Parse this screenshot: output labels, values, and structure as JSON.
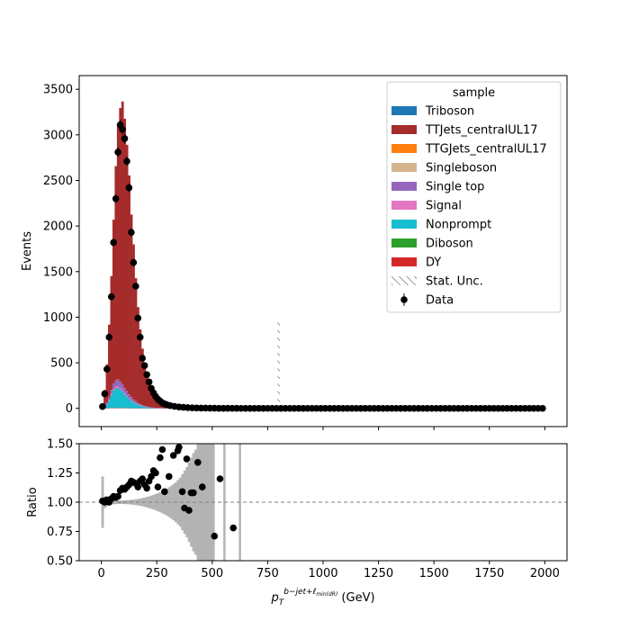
{
  "chart_data": [
    {
      "type": "bar",
      "subtype": "stacked-histogram",
      "xlabel": "p_T^{b-jet+ℓ_min(dR)} (GeV)",
      "xlabel_main": "p",
      "xlabel_sub": "T",
      "xlabel_sup": "b−jet+ℓ",
      "xlabel_supsub": "min(dR)",
      "xlabel_unit": " (GeV)",
      "ylabel": "Events",
      "xlim": [
        -100,
        2100
      ],
      "ylim": [
        -200,
        3650
      ],
      "xticks": [
        0,
        250,
        500,
        750,
        1000,
        1250,
        1500,
        1750,
        2000
      ],
      "yticks": [
        0,
        500,
        1000,
        1500,
        2000,
        2500,
        3000,
        3500
      ],
      "legend_title": "sample",
      "legend_position": "upper right",
      "stack_order": [
        "DY",
        "Diboson",
        "Nonprompt",
        "Signal",
        "Single top",
        "Singleboson",
        "TTGJets_centralUL17",
        "TTJets_centralUL17",
        "Triboson"
      ],
      "legend": [
        {
          "name": "Triboson",
          "color": "#1f77b4",
          "kind": "patch"
        },
        {
          "name": "TTJets_centralUL17",
          "color": "#a62c2c",
          "kind": "patch"
        },
        {
          "name": "TTGJets_centralUL17",
          "color": "#ff7f0e",
          "kind": "patch"
        },
        {
          "name": "Singleboson",
          "color": "#d4b58e",
          "kind": "patch"
        },
        {
          "name": "Single top",
          "color": "#9467bd",
          "kind": "patch"
        },
        {
          "name": "Signal",
          "color": "#e377c2",
          "kind": "patch"
        },
        {
          "name": "Nonprompt",
          "color": "#17becf",
          "kind": "patch"
        },
        {
          "name": "Diboson",
          "color": "#2ca02c",
          "kind": "patch"
        },
        {
          "name": "DY",
          "color": "#d62728",
          "kind": "patch"
        },
        {
          "name": "Stat. Unc.",
          "color": "#808080",
          "kind": "hatch"
        },
        {
          "name": "Data",
          "color": "#000000",
          "kind": "errorbar"
        }
      ],
      "bin_width": 10,
      "bin_starts": [
        0,
        10,
        20,
        30,
        40,
        50,
        60,
        70,
        80,
        90,
        100,
        110,
        120,
        130,
        140,
        150,
        160,
        170,
        180,
        190,
        200,
        210,
        220,
        230,
        240,
        250,
        260,
        270,
        280,
        290,
        300,
        310,
        320,
        330,
        340,
        350,
        360,
        370,
        380,
        390
      ],
      "stack": {
        "TTJets_centralUL17": [
          30,
          180,
          420,
          800,
          1250,
          1800,
          2350,
          2800,
          3000,
          3100,
          2950,
          2700,
          2400,
          2000,
          1700,
          1350,
          1050,
          820,
          620,
          470,
          350,
          260,
          195,
          145,
          108,
          80,
          60,
          45,
          34,
          26,
          20,
          15,
          12,
          9,
          7,
          5,
          4,
          3,
          2.5,
          2
        ],
        "Nonprompt": [
          2,
          15,
          40,
          80,
          140,
          190,
          215,
          220,
          200,
          180,
          150,
          125,
          100,
          80,
          62,
          50,
          38,
          29,
          22,
          16,
          12,
          9,
          7,
          5,
          4,
          3,
          2,
          1.5,
          1,
          1,
          0.8,
          0.6,
          0.5,
          0.4,
          0.3,
          0.2,
          0.2,
          0.1,
          0.1,
          0.1
        ],
        "Signal": [
          0,
          2,
          5,
          10,
          15,
          18,
          20,
          20,
          18,
          16,
          14,
          12,
          10,
          8,
          6,
          5,
          4,
          3,
          2,
          2,
          1,
          1,
          1,
          0.5,
          0.5,
          0.3,
          0.2,
          0.2,
          0.1,
          0.1,
          0,
          0,
          0,
          0,
          0,
          0,
          0,
          0,
          0,
          0
        ],
        "Single top": [
          0,
          5,
          15,
          25,
          40,
          55,
          65,
          70,
          70,
          65,
          58,
          50,
          42,
          35,
          28,
          22,
          17,
          13,
          10,
          8,
          6,
          5,
          4,
          3,
          2,
          2,
          1,
          1,
          1,
          0.5,
          0.5,
          0.3,
          0.2,
          0.2,
          0.1,
          0.1,
          0.1,
          0,
          0,
          0
        ],
        "DY": [
          0,
          1,
          2,
          3,
          4,
          5,
          5,
          5,
          4,
          4,
          3,
          3,
          2,
          2,
          2,
          1,
          1,
          1,
          1,
          0.5,
          0.5,
          0.3,
          0.2,
          0.2,
          0.1,
          0.1,
          0,
          0,
          0,
          0,
          0,
          0,
          0,
          0,
          0,
          0,
          0,
          0,
          0,
          0
        ],
        "Singleboson": [
          0,
          0,
          1,
          1,
          2,
          2,
          2,
          2,
          2,
          1,
          1,
          1,
          1,
          1,
          0.5,
          0.5,
          0.3,
          0.3,
          0.2,
          0.1,
          0.1,
          0,
          0,
          0,
          0,
          0,
          0,
          0,
          0,
          0,
          0,
          0,
          0,
          0,
          0,
          0,
          0,
          0,
          0,
          0
        ]
      },
      "unc_spike": {
        "x": 800,
        "y": [
          0,
          950
        ]
      },
      "data_points": [
        {
          "x": 5,
          "y": 20
        },
        {
          "x": 15,
          "y": 160
        },
        {
          "x": 25,
          "y": 430
        },
        {
          "x": 35,
          "y": 780
        },
        {
          "x": 45,
          "y": 1225
        },
        {
          "x": 55,
          "y": 1820
        },
        {
          "x": 65,
          "y": 2300
        },
        {
          "x": 75,
          "y": 2810
        },
        {
          "x": 85,
          "y": 3110
        },
        {
          "x": 95,
          "y": 3060
        },
        {
          "x": 105,
          "y": 2960
        },
        {
          "x": 115,
          "y": 2710
        },
        {
          "x": 125,
          "y": 2420
        },
        {
          "x": 135,
          "y": 1930
        },
        {
          "x": 145,
          "y": 1600
        },
        {
          "x": 155,
          "y": 1340
        },
        {
          "x": 165,
          "y": 990
        },
        {
          "x": 175,
          "y": 780
        },
        {
          "x": 185,
          "y": 550
        },
        {
          "x": 195,
          "y": 470
        },
        {
          "x": 205,
          "y": 370
        },
        {
          "x": 215,
          "y": 290
        },
        {
          "x": 225,
          "y": 220
        },
        {
          "x": 235,
          "y": 170
        },
        {
          "x": 245,
          "y": 130
        },
        {
          "x": 255,
          "y": 100
        },
        {
          "x": 265,
          "y": 80
        },
        {
          "x": 275,
          "y": 60
        },
        {
          "x": 285,
          "y": 50
        },
        {
          "x": 295,
          "y": 40
        },
        {
          "x": 310,
          "y": 30
        },
        {
          "x": 330,
          "y": 22
        },
        {
          "x": 350,
          "y": 15
        },
        {
          "x": 370,
          "y": 12
        },
        {
          "x": 390,
          "y": 8
        },
        {
          "x": 410,
          "y": 6
        },
        {
          "x": 430,
          "y": 4
        },
        {
          "x": 450,
          "y": 3
        },
        {
          "x": 470,
          "y": 3
        },
        {
          "x": 490,
          "y": 2
        },
        {
          "x": 510,
          "y": 2
        },
        {
          "x": 530,
          "y": 1
        },
        {
          "x": 550,
          "y": 1
        },
        {
          "x": 570,
          "y": 1
        },
        {
          "x": 590,
          "y": 1
        },
        {
          "x": 610,
          "y": 1
        },
        {
          "x": 630,
          "y": 0
        },
        {
          "x": 650,
          "y": 0
        },
        {
          "x": 670,
          "y": 0
        },
        {
          "x": 690,
          "y": 0
        },
        {
          "x": 710,
          "y": 0
        },
        {
          "x": 730,
          "y": 0
        },
        {
          "x": 750,
          "y": 0
        },
        {
          "x": 770,
          "y": 0
        },
        {
          "x": 790,
          "y": 0
        },
        {
          "x": 810,
          "y": 0
        },
        {
          "x": 830,
          "y": 0
        },
        {
          "x": 850,
          "y": 0
        },
        {
          "x": 870,
          "y": 0
        },
        {
          "x": 890,
          "y": 0
        },
        {
          "x": 910,
          "y": 0
        },
        {
          "x": 930,
          "y": 0
        },
        {
          "x": 950,
          "y": 0
        },
        {
          "x": 970,
          "y": 0
        },
        {
          "x": 990,
          "y": 0
        },
        {
          "x": 1010,
          "y": 0
        },
        {
          "x": 1030,
          "y": 0
        },
        {
          "x": 1050,
          "y": 0
        },
        {
          "x": 1070,
          "y": 0
        },
        {
          "x": 1090,
          "y": 0
        },
        {
          "x": 1110,
          "y": 0
        },
        {
          "x": 1130,
          "y": 0
        },
        {
          "x": 1150,
          "y": 0
        },
        {
          "x": 1170,
          "y": 0
        },
        {
          "x": 1190,
          "y": 0
        },
        {
          "x": 1210,
          "y": 0
        },
        {
          "x": 1230,
          "y": 0
        },
        {
          "x": 1250,
          "y": 0
        },
        {
          "x": 1270,
          "y": 0
        },
        {
          "x": 1290,
          "y": 0
        },
        {
          "x": 1310,
          "y": 0
        },
        {
          "x": 1330,
          "y": 0
        },
        {
          "x": 1350,
          "y": 0
        },
        {
          "x": 1370,
          "y": 0
        },
        {
          "x": 1390,
          "y": 0
        },
        {
          "x": 1410,
          "y": 0
        },
        {
          "x": 1430,
          "y": 0
        },
        {
          "x": 1450,
          "y": 0
        },
        {
          "x": 1470,
          "y": 0
        },
        {
          "x": 1490,
          "y": 0
        },
        {
          "x": 1510,
          "y": 0
        },
        {
          "x": 1530,
          "y": 0
        },
        {
          "x": 1550,
          "y": 0
        },
        {
          "x": 1570,
          "y": 0
        },
        {
          "x": 1590,
          "y": 0
        },
        {
          "x": 1610,
          "y": 0
        },
        {
          "x": 1630,
          "y": 0
        },
        {
          "x": 1650,
          "y": 0
        },
        {
          "x": 1670,
          "y": 0
        },
        {
          "x": 1690,
          "y": 0
        },
        {
          "x": 1710,
          "y": 0
        },
        {
          "x": 1730,
          "y": 0
        },
        {
          "x": 1750,
          "y": 0
        },
        {
          "x": 1770,
          "y": 0
        },
        {
          "x": 1790,
          "y": 0
        },
        {
          "x": 1810,
          "y": 0
        },
        {
          "x": 1830,
          "y": 0
        },
        {
          "x": 1850,
          "y": 0
        },
        {
          "x": 1870,
          "y": 0
        },
        {
          "x": 1890,
          "y": 0
        },
        {
          "x": 1910,
          "y": 0
        },
        {
          "x": 1930,
          "y": 0
        },
        {
          "x": 1950,
          "y": 0
        },
        {
          "x": 1970,
          "y": 0
        },
        {
          "x": 1990,
          "y": 0
        }
      ]
    },
    {
      "type": "scatter",
      "subtype": "ratio",
      "ylabel": "Ratio",
      "xlim": [
        -100,
        2100
      ],
      "ylim": [
        0.5,
        1.5
      ],
      "xticks": [
        0,
        250,
        500,
        750,
        1000,
        1250,
        1500,
        1750,
        2000
      ],
      "yticks": [
        0.5,
        0.75,
        1.0,
        1.25,
        1.5
      ],
      "ytick_labels": [
        "0.50",
        "0.75",
        "1.00",
        "1.25",
        "1.50"
      ],
      "reference_line": 1.0,
      "unc_band": {
        "bin_width": 10,
        "bin_starts": [
          0,
          10,
          20,
          30,
          40,
          50,
          60,
          70,
          80,
          90,
          100,
          110,
          120,
          130,
          140,
          150,
          160,
          170,
          180,
          190,
          200,
          210,
          220,
          230,
          240,
          250,
          260,
          270,
          280,
          290,
          300,
          310,
          320,
          330,
          340,
          350,
          360,
          370,
          380,
          390,
          400,
          410,
          420,
          430,
          440,
          450,
          460,
          470,
          480,
          490,
          500
        ],
        "half_width": [
          0.22,
          0.05,
          0.035,
          0.025,
          0.02,
          0.018,
          0.016,
          0.015,
          0.015,
          0.015,
          0.016,
          0.017,
          0.018,
          0.02,
          0.022,
          0.025,
          0.028,
          0.031,
          0.035,
          0.04,
          0.045,
          0.05,
          0.056,
          0.063,
          0.07,
          0.078,
          0.086,
          0.095,
          0.105,
          0.115,
          0.127,
          0.14,
          0.155,
          0.17,
          0.19,
          0.21,
          0.24,
          0.27,
          0.3,
          0.34,
          0.38,
          0.42,
          0.45,
          0.5,
          0.5,
          0.5,
          0.5,
          0.5,
          0.5,
          0.5,
          0.5
        ]
      },
      "unc_spikes": [
        {
          "x_start": 550,
          "x_end": 560,
          "lo": 0.5,
          "hi": 1.5
        },
        {
          "x_start": 620,
          "x_end": 630,
          "lo": 0.5,
          "hi": 1.5
        }
      ],
      "points": [
        {
          "x": 5,
          "y": 1.01
        },
        {
          "x": 15,
          "y": 1.0
        },
        {
          "x": 25,
          "y": 1.02
        },
        {
          "x": 35,
          "y": 1.0
        },
        {
          "x": 45,
          "y": 1.03
        },
        {
          "x": 55,
          "y": 1.05
        },
        {
          "x": 65,
          "y": 1.04
        },
        {
          "x": 75,
          "y": 1.05
        },
        {
          "x": 85,
          "y": 1.1
        },
        {
          "x": 95,
          "y": 1.12
        },
        {
          "x": 105,
          "y": 1.11
        },
        {
          "x": 115,
          "y": 1.13
        },
        {
          "x": 125,
          "y": 1.15
        },
        {
          "x": 135,
          "y": 1.18
        },
        {
          "x": 145,
          "y": 1.17
        },
        {
          "x": 155,
          "y": 1.16
        },
        {
          "x": 165,
          "y": 1.13
        },
        {
          "x": 175,
          "y": 1.18
        },
        {
          "x": 185,
          "y": 1.2
        },
        {
          "x": 195,
          "y": 1.15
        },
        {
          "x": 205,
          "y": 1.12
        },
        {
          "x": 215,
          "y": 1.18
        },
        {
          "x": 225,
          "y": 1.22
        },
        {
          "x": 235,
          "y": 1.27
        },
        {
          "x": 245,
          "y": 1.25
        },
        {
          "x": 255,
          "y": 1.13
        },
        {
          "x": 265,
          "y": 1.38
        },
        {
          "x": 275,
          "y": 1.45
        },
        {
          "x": 285,
          "y": 1.09
        },
        {
          "x": 305,
          "y": 1.22
        },
        {
          "x": 325,
          "y": 1.4
        },
        {
          "x": 345,
          "y": 1.44
        },
        {
          "x": 350,
          "y": 1.47
        },
        {
          "x": 365,
          "y": 1.09
        },
        {
          "x": 375,
          "y": 0.95
        },
        {
          "x": 385,
          "y": 1.37
        },
        {
          "x": 395,
          "y": 0.93
        },
        {
          "x": 405,
          "y": 1.08
        },
        {
          "x": 415,
          "y": 1.08
        },
        {
          "x": 435,
          "y": 1.34
        },
        {
          "x": 455,
          "y": 1.13
        },
        {
          "x": 510,
          "y": 0.71
        },
        {
          "x": 535,
          "y": 1.2
        },
        {
          "x": 595,
          "y": 0.78
        }
      ]
    }
  ]
}
